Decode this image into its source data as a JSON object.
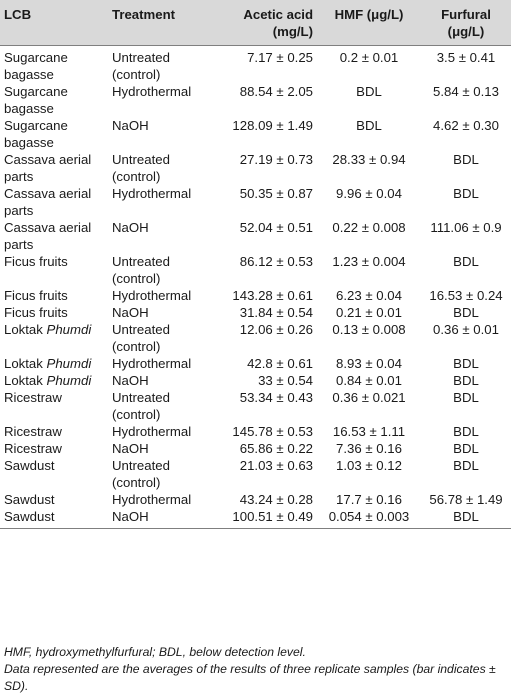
{
  "headers": {
    "lcb": "LCB",
    "treatment": "Treatment",
    "acetic": "Acetic acid (mg/L)",
    "hmf": "HMF (μg/L)",
    "furfural": "Furfural (μg/L)"
  },
  "rows": [
    {
      "lcb": "Sugarcane bagasse",
      "lcb_italic": "",
      "treatment": "Untreated (control)",
      "acetic": "7.17 ± 0.25",
      "hmf": "0.2 ± 0.01",
      "furfural": "3.5 ± 0.41"
    },
    {
      "lcb": "Sugarcane bagasse",
      "lcb_italic": "",
      "treatment": "Hydrothermal",
      "acetic": "88.54 ± 2.05",
      "hmf": "BDL",
      "furfural": "5.84 ± 0.13"
    },
    {
      "lcb": "Sugarcane bagasse",
      "lcb_italic": "",
      "treatment": "NaOH",
      "acetic": "128.09 ± 1.49",
      "hmf": "BDL",
      "furfural": "4.62 ± 0.30"
    },
    {
      "lcb": "Cassava aerial parts",
      "lcb_italic": "",
      "treatment": "Untreated (control)",
      "acetic": "27.19 ± 0.73",
      "hmf": "28.33 ± 0.94",
      "furfural": "BDL"
    },
    {
      "lcb": "Cassava aerial parts",
      "lcb_italic": "",
      "treatment": "Hydrothermal",
      "acetic": "50.35 ± 0.87",
      "hmf": "9.96 ± 0.04",
      "furfural": "BDL"
    },
    {
      "lcb": "Cassava aerial parts",
      "lcb_italic": "",
      "treatment": "NaOH",
      "acetic": "52.04 ± 0.51",
      "hmf": "0.22 ± 0.008",
      "furfural": "111.06 ± 0.9"
    },
    {
      "lcb": "Ficus fruits",
      "lcb_italic": "",
      "treatment": "Untreated (control)",
      "acetic": "86.12 ± 0.53",
      "hmf": "1.23 ± 0.004",
      "furfural": "BDL"
    },
    {
      "lcb": "Ficus fruits",
      "lcb_italic": "",
      "treatment": "Hydrothermal",
      "acetic": "143.28 ± 0.61",
      "hmf": "6.23 ± 0.04",
      "furfural": "16.53 ± 0.24"
    },
    {
      "lcb": "Ficus fruits",
      "lcb_italic": "",
      "treatment": "NaOH",
      "acetic": "31.84 ± 0.54",
      "hmf": "0.21 ± 0.01",
      "furfural": "BDL"
    },
    {
      "lcb": "Loktak ",
      "lcb_italic": "Phumdi",
      "treatment": "Untreated (control)",
      "acetic": "12.06 ± 0.26",
      "hmf": "0.13 ± 0.008",
      "furfural": "0.36 ± 0.01"
    },
    {
      "lcb": "Loktak ",
      "lcb_italic": "Phumdi",
      "treatment": "Hydrothermal",
      "acetic": "42.8 ± 0.61",
      "hmf": "8.93 ± 0.04",
      "furfural": "BDL"
    },
    {
      "lcb": "Loktak ",
      "lcb_italic": "Phumdi",
      "treatment": "NaOH",
      "acetic": "33 ± 0.54",
      "hmf": "0.84 ± 0.01",
      "furfural": "BDL"
    },
    {
      "lcb": "Ricestraw",
      "lcb_italic": "",
      "treatment": "Untreated (control)",
      "acetic": "53.34 ± 0.43",
      "hmf": "0.36 ± 0.021",
      "furfural": "BDL"
    },
    {
      "lcb": "Ricestraw",
      "lcb_italic": "",
      "treatment": "Hydrothermal",
      "acetic": "145.78 ± 0.53",
      "hmf": "16.53 ± 1.11",
      "furfural": "BDL"
    },
    {
      "lcb": "Ricestraw",
      "lcb_italic": "",
      "treatment": "NaOH",
      "acetic": "65.86 ± 0.22",
      "hmf": "7.36 ± 0.16",
      "furfural": "BDL"
    },
    {
      "lcb": "Sawdust",
      "lcb_italic": "",
      "treatment": "Untreated (control)",
      "acetic": "21.03 ± 0.63",
      "hmf": "1.03 ± 0.12",
      "furfural": "BDL"
    },
    {
      "lcb": "Sawdust",
      "lcb_italic": "",
      "treatment": "Hydrothermal",
      "acetic": "43.24 ± 0.28",
      "hmf": "17.7 ± 0.16",
      "furfural": "56.78 ± 1.49"
    },
    {
      "lcb": "Sawdust",
      "lcb_italic": "",
      "treatment": "NaOH",
      "acetic": "100.51 ± 0.49",
      "hmf": "0.054 ± 0.003",
      "furfural": "BDL"
    }
  ],
  "notes": {
    "abbreviations": "HMF, hydroxymethylfurfural; BDL, below detection level.",
    "replicates": "Data represented are the averages of the results of three replicate samples (bar indicates ± SD)."
  }
}
